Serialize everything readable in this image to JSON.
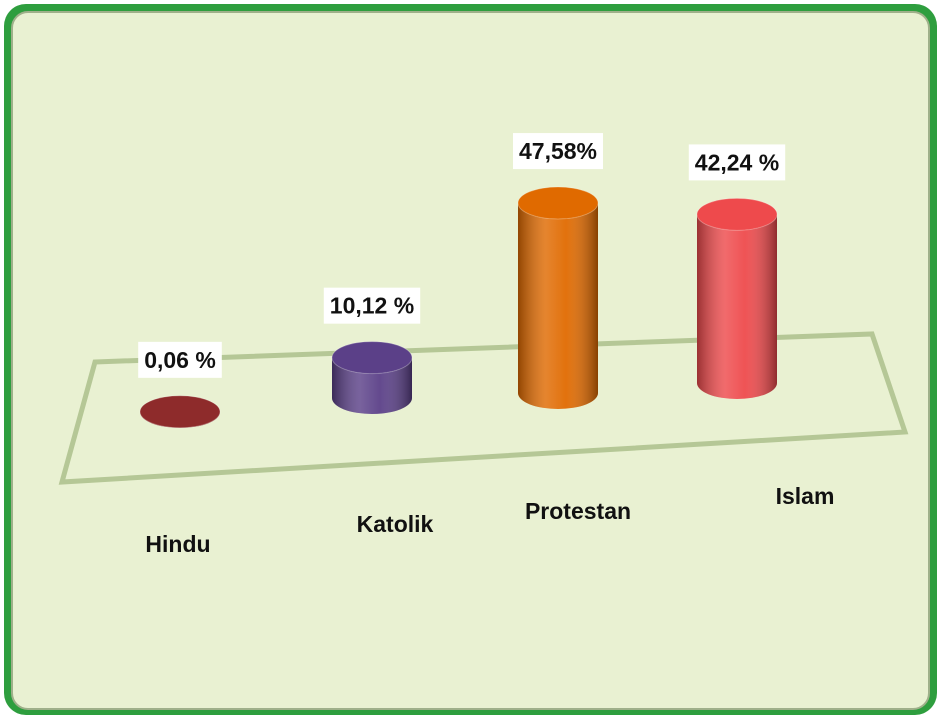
{
  "chart_data": {
    "type": "cylinder",
    "categories": [
      "Hindu",
      "Katolik",
      "Protestan",
      "Islam"
    ],
    "values": [
      0.06,
      10.12,
      47.58,
      42.24
    ],
    "value_labels": [
      "0,06 %",
      "10,12 %",
      "47,58%",
      "42,24 %"
    ],
    "colors": [
      "#8e2b2b",
      "#5b4088",
      "#e06a00",
      "#ee4a4c"
    ]
  }
}
